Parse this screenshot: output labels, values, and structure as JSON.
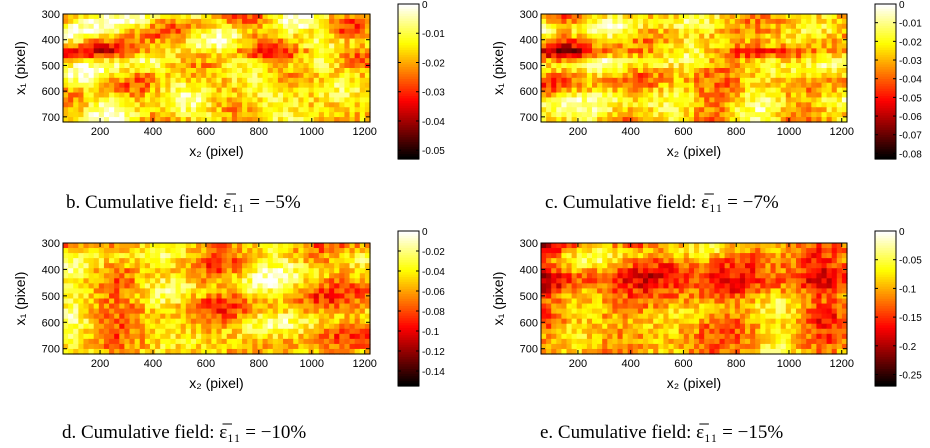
{
  "chart_data": [
    {
      "type": "heatmap",
      "title": "",
      "caption": "",
      "xlabel": "x₂ (pixel)",
      "ylabel": "x₁ (pixel)",
      "xlim": [
        60,
        1220
      ],
      "ylim": [
        300,
        720
      ],
      "x_ticks": [
        200,
        400,
        600,
        800,
        1000,
        1200
      ],
      "y_ticks": [
        300,
        400,
        500,
        600,
        700
      ],
      "colorbar_range": [
        -0.053,
        0
      ],
      "colorbar_ticks": [
        0,
        -0.01,
        -0.02,
        -0.03,
        -0.04,
        -0.05
      ],
      "colormap": "hot",
      "colorbar_tick_labels": [
        "0",
        "-0.01",
        "-0.02",
        "-0.03",
        "-0.04",
        "-0.05"
      ]
    },
    {
      "type": "heatmap",
      "title": "",
      "caption": "",
      "xlabel": "x₂ (pixel)",
      "ylabel": "x₁ (pixel)",
      "xlim": [
        60,
        1220
      ],
      "ylim": [
        300,
        720
      ],
      "x_ticks": [
        200,
        400,
        600,
        800,
        1000,
        1200
      ],
      "y_ticks": [
        300,
        400,
        500,
        600,
        700
      ],
      "colorbar_range": [
        -0.083,
        0
      ],
      "colorbar_ticks": [
        0,
        -0.01,
        -0.02,
        -0.03,
        -0.04,
        -0.05,
        -0.06,
        -0.07,
        -0.08
      ],
      "colormap": "hot",
      "colorbar_tick_labels": [
        "0",
        "-0.01",
        "-0.02",
        "-0.03",
        "-0.04",
        "-0.05",
        "-0.06",
        "-0.07",
        "-0.08"
      ]
    },
    {
      "type": "heatmap",
      "title": "",
      "caption": "b.   Cumulative field: ε̅₁₁ = −5%",
      "xlabel": "x₂ (pixel)",
      "ylabel": "x₁ (pixel)",
      "xlim": [
        60,
        1220
      ],
      "ylim": [
        300,
        720
      ],
      "x_ticks": [
        200,
        400,
        600,
        800,
        1000,
        1200
      ],
      "y_ticks": [
        300,
        400,
        500,
        600,
        700
      ],
      "colorbar_range": [
        -0.155,
        0
      ],
      "colorbar_ticks": [
        0,
        -0.02,
        -0.04,
        -0.06,
        -0.08,
        -0.1,
        -0.12,
        -0.14
      ],
      "colormap": "hot",
      "colorbar_tick_labels": [
        "0",
        "-0.02",
        "-0.04",
        "-0.06",
        "-0.08",
        "-0.1",
        "-0.12",
        "-0.14"
      ]
    },
    {
      "type": "heatmap",
      "title": "",
      "caption": "c.   Cumulative field: ε̅₁₁ = −7%",
      "xlabel": "x₂ (pixel)",
      "ylabel": "x₁ (pixel)",
      "xlim": [
        60,
        1220
      ],
      "ylim": [
        300,
        720
      ],
      "x_ticks": [
        200,
        400,
        600,
        800,
        1000,
        1200
      ],
      "y_ticks": [
        300,
        400,
        500,
        600,
        700
      ],
      "colorbar_range": [
        -0.27,
        0
      ],
      "colorbar_ticks": [
        0,
        -0.05,
        -0.1,
        -0.15,
        -0.2,
        -0.25
      ],
      "colormap": "hot",
      "colorbar_tick_labels": [
        "0",
        "-0.05",
        "-0.1",
        "-0.15",
        "-0.2",
        "-0.25"
      ]
    }
  ],
  "captions": {
    "b": "b.   Cumulative field: ε̅₁₁ = −5%",
    "c": "c.   Cumulative field: ε̅₁₁ = −7%",
    "d": "d.   Cumulative field: ε̅₁₁ = −10%",
    "e": "e.   Cumulative field: ε̅₁₁ = −15%"
  }
}
